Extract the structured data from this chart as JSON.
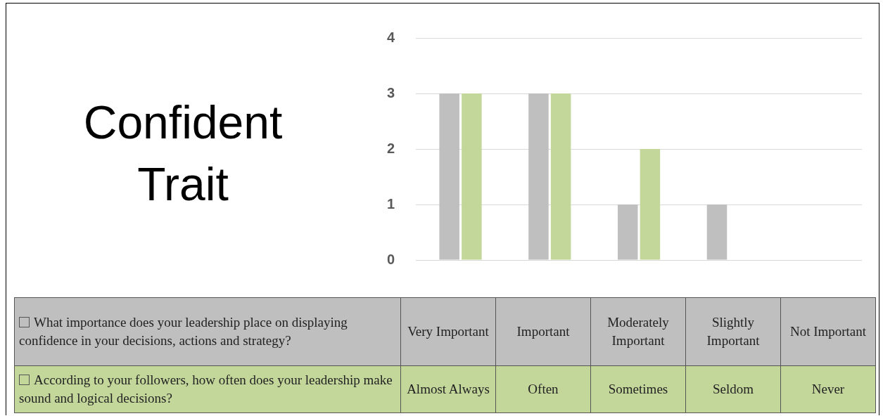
{
  "chart_data": {
    "type": "bar",
    "title": "Confident Trait",
    "categories": [
      "Very Important",
      "Important",
      "Moderately Important",
      "Slightly Important",
      "Not Important"
    ],
    "series": [
      {
        "name": "What importance does your leadership place on displaying confidence in your decisions, actions and strategy?",
        "color": "#bfbfbf",
        "values": [
          3,
          3,
          1,
          1,
          0
        ]
      },
      {
        "name": "According to your followers, how often does your leadership make sound and logical decisions?",
        "color": "#c4d79b",
        "values": [
          3,
          3,
          2,
          0,
          0
        ]
      }
    ],
    "annotations": [
      "Almost Always",
      "Often",
      "Sometimes",
      "Seldom",
      "Never"
    ],
    "ylim": [
      0,
      4
    ],
    "yticks": [
      0,
      1,
      2,
      3,
      4
    ],
    "grid": "y",
    "tick_labels": "y",
    "legend": "bottom"
  }
}
